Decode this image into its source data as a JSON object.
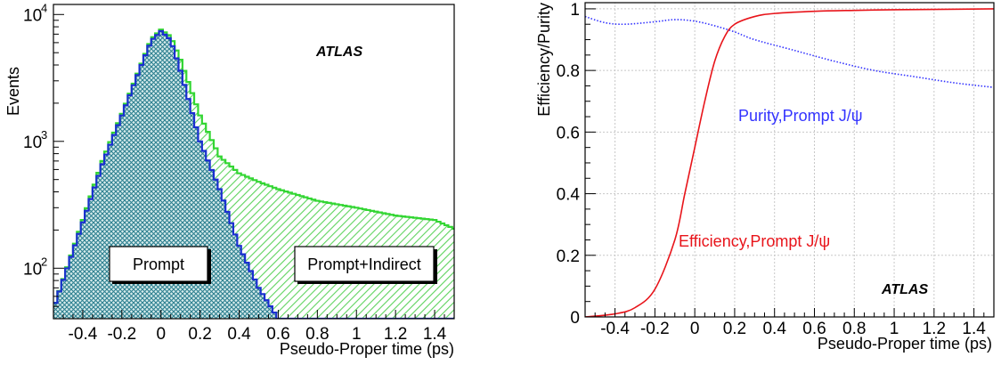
{
  "chart_data": [
    {
      "type": "histogram",
      "yscale": "log",
      "xlabel": "Pseudo-Proper time (ps)",
      "ylabel": "Events",
      "xlim": [
        -0.55,
        1.5
      ],
      "ylim": [
        40,
        12000
      ],
      "x_ticks": [
        "-0.4",
        "-0.2",
        "0",
        "0.2",
        "0.4",
        "0.6",
        "0.8",
        "1",
        "1.2",
        "1.4"
      ],
      "y_ticks": [
        {
          "base": "10",
          "exp": "2"
        },
        {
          "base": "10",
          "exp": "3"
        },
        {
          "base": "10",
          "exp": "4"
        }
      ],
      "annotation": "ATLAS",
      "labels": [
        "Prompt",
        "Prompt+Indirect"
      ],
      "colors": {
        "prompt": "#1a2fd0",
        "prompt_fill": "#2f8f9f",
        "total": "#33d633",
        "total_fill": "#8fe28f"
      },
      "x": [
        -0.55,
        -0.4,
        -0.3,
        -0.2,
        -0.1,
        -0.05,
        0,
        0.05,
        0.1,
        0.2,
        0.3,
        0.4,
        0.5,
        0.6,
        0.8,
        1.0,
        1.2,
        1.4,
        1.5
      ],
      "series": [
        {
          "name": "Prompt+Indirect",
          "values": [
            48,
            240,
            700,
            1650,
            4100,
            6400,
            7600,
            6700,
            4400,
            1600,
            760,
            560,
            480,
            420,
            340,
            300,
            260,
            240,
            205
          ]
        },
        {
          "name": "Prompt",
          "values": [
            48,
            230,
            660,
            1600,
            4000,
            6200,
            7400,
            6300,
            3600,
            1000,
            420,
            150,
            70,
            40,
            40,
            40,
            40,
            40,
            40
          ]
        }
      ]
    },
    {
      "type": "line",
      "xlabel": "Pseudo-Proper time (ps)",
      "ylabel": "Efficiency/Purity",
      "xlim": [
        -0.55,
        1.5
      ],
      "ylim": [
        0,
        1.02
      ],
      "x_ticks": [
        "-0.4",
        "-0.2",
        "0",
        "0.2",
        "0.4",
        "0.6",
        "0.8",
        "1",
        "1.2",
        "1.4"
      ],
      "y_ticks": [
        "0",
        "0.2",
        "0.4",
        "0.6",
        "0.8",
        "1"
      ],
      "grid": true,
      "annotation": "ATLAS",
      "series": [
        {
          "name": "Purity,Prompt J/ψ",
          "color": "#3333ff",
          "style": "dotted",
          "x": [
            -0.55,
            -0.45,
            -0.35,
            -0.2,
            -0.1,
            0.0,
            0.1,
            0.2,
            0.3,
            0.5,
            0.7,
            0.9,
            1.1,
            1.3,
            1.5
          ],
          "y": [
            0.975,
            0.955,
            0.95,
            0.958,
            0.965,
            0.96,
            0.945,
            0.925,
            0.9,
            0.865,
            0.83,
            0.8,
            0.78,
            0.76,
            0.745
          ]
        },
        {
          "name": "Efficiency,Prompt J/ψ",
          "color": "#e8141a",
          "style": "solid",
          "x": [
            -0.55,
            -0.4,
            -0.3,
            -0.2,
            -0.1,
            -0.05,
            0.0,
            0.05,
            0.1,
            0.15,
            0.2,
            0.3,
            0.4,
            0.6,
            0.8,
            1.0,
            1.2,
            1.5
          ],
          "y": [
            0.0,
            0.01,
            0.03,
            0.09,
            0.25,
            0.4,
            0.55,
            0.7,
            0.83,
            0.91,
            0.95,
            0.975,
            0.985,
            0.992,
            0.995,
            0.997,
            0.998,
            1.0
          ]
        }
      ]
    }
  ]
}
